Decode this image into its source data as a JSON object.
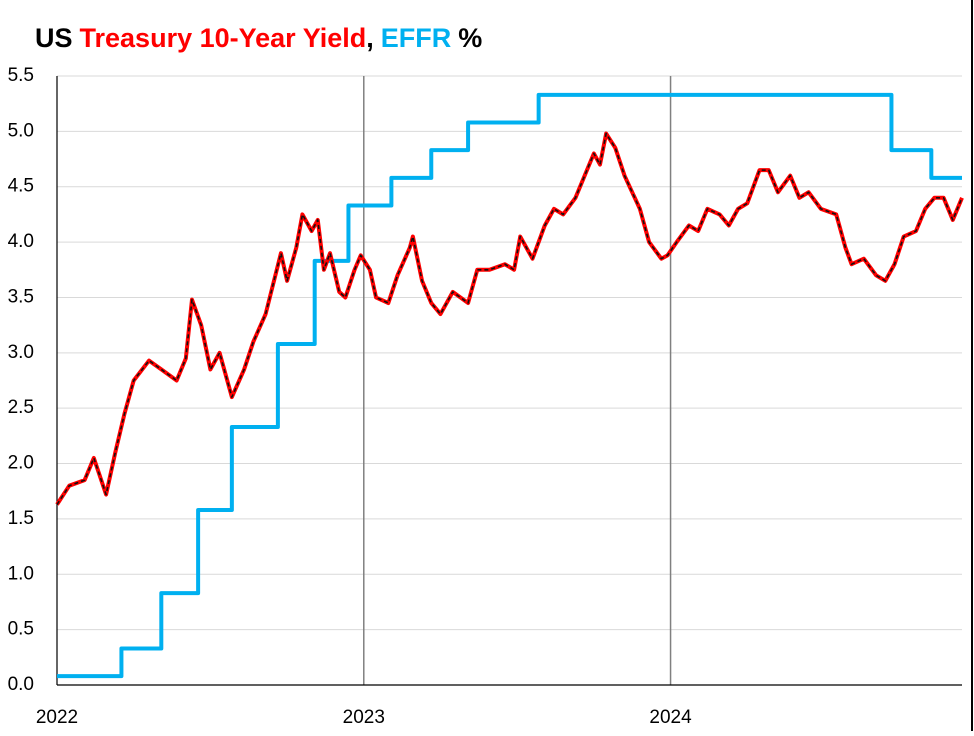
{
  "chart_data": {
    "type": "line",
    "title": [
      "US",
      "Treasury 10-Year Yield",
      ",",
      "EFFR",
      "%"
    ],
    "title_colors": [
      "#000000",
      "#ff0000",
      "#000000",
      "#00b0f0",
      "#000000"
    ],
    "xlim": [
      2022,
      2024.95
    ],
    "xticks": [
      2022,
      2023,
      2024
    ],
    "ylim": [
      0,
      5.5
    ],
    "yticks": [
      {
        "value": 0,
        "label": "0.0"
      },
      0.5,
      {
        "value": 1,
        "label": "1.0"
      },
      1.5,
      {
        "value": 2,
        "label": "2.0"
      },
      2.5,
      {
        "value": 3,
        "label": "3.0"
      },
      3.5,
      {
        "value": 4,
        "label": "4.0"
      },
      4.5,
      {
        "value": 5,
        "label": "5.0"
      },
      5.5
    ],
    "grid": true,
    "series": [
      {
        "name": "Treasury 10-Year Yield",
        "color": "#ff0000",
        "overlay_color": "#111111",
        "x": [
          2022.0,
          2022.04,
          2022.09,
          2022.12,
          2022.16,
          2022.19,
          2022.22,
          2022.25,
          2022.3,
          2022.34,
          2022.39,
          2022.42,
          2022.44,
          2022.47,
          2022.5,
          2022.53,
          2022.57,
          2022.61,
          2022.64,
          2022.68,
          2022.73,
          2022.75,
          2022.78,
          2022.8,
          2022.83,
          2022.85,
          2022.87,
          2022.89,
          2022.92,
          2022.94,
          2022.97,
          2022.99,
          2023.02,
          2023.04,
          2023.08,
          2023.11,
          2023.15,
          2023.16,
          2023.19,
          2023.22,
          2023.25,
          2023.29,
          2023.34,
          2023.37,
          2023.41,
          2023.46,
          2023.49,
          2023.51,
          2023.55,
          2023.59,
          2023.62,
          2023.65,
          2023.69,
          2023.72,
          2023.75,
          2023.77,
          2023.79,
          2023.82,
          2023.85,
          2023.9,
          2023.93,
          2023.97,
          2023.99,
          2024.02,
          2024.06,
          2024.09,
          2024.12,
          2024.16,
          2024.19,
          2024.22,
          2024.25,
          2024.29,
          2024.32,
          2024.35,
          2024.39,
          2024.42,
          2024.45,
          2024.49,
          2024.54,
          2024.57,
          2024.59,
          2024.63,
          2024.67,
          2024.7,
          2024.73,
          2024.76,
          2024.8,
          2024.83,
          2024.86,
          2024.89,
          2024.92,
          2024.95
        ],
        "values": [
          1.63,
          1.8,
          1.85,
          2.05,
          1.72,
          2.1,
          2.45,
          2.75,
          2.93,
          2.85,
          2.75,
          2.95,
          3.48,
          3.25,
          2.85,
          3.0,
          2.6,
          2.85,
          3.1,
          3.35,
          3.9,
          3.65,
          3.95,
          4.25,
          4.1,
          4.2,
          3.75,
          3.9,
          3.55,
          3.5,
          3.75,
          3.88,
          3.75,
          3.5,
          3.45,
          3.7,
          3.95,
          4.05,
          3.65,
          3.45,
          3.35,
          3.55,
          3.45,
          3.75,
          3.75,
          3.8,
          3.75,
          4.05,
          3.85,
          4.15,
          4.3,
          4.25,
          4.4,
          4.6,
          4.8,
          4.7,
          4.98,
          4.85,
          4.6,
          4.3,
          4.0,
          3.85,
          3.88,
          4.0,
          4.15,
          4.1,
          4.3,
          4.25,
          4.15,
          4.3,
          4.35,
          4.65,
          4.65,
          4.45,
          4.6,
          4.4,
          4.45,
          4.3,
          4.25,
          3.95,
          3.8,
          3.85,
          3.7,
          3.65,
          3.8,
          4.05,
          4.1,
          4.3,
          4.4,
          4.4,
          4.2,
          4.4
        ]
      },
      {
        "name": "EFFR",
        "color": "#00b0f0",
        "step": true,
        "x": [
          2022.0,
          2022.21,
          2022.34,
          2022.46,
          2022.57,
          2022.72,
          2022.84,
          2022.95,
          2023.09,
          2023.22,
          2023.34,
          2023.57,
          2024.72,
          2024.85,
          2024.95
        ],
        "values": [
          0.08,
          0.33,
          0.83,
          1.58,
          2.33,
          3.08,
          3.83,
          4.33,
          4.58,
          4.83,
          5.08,
          5.33,
          4.83,
          4.58,
          4.58
        ]
      }
    ]
  }
}
